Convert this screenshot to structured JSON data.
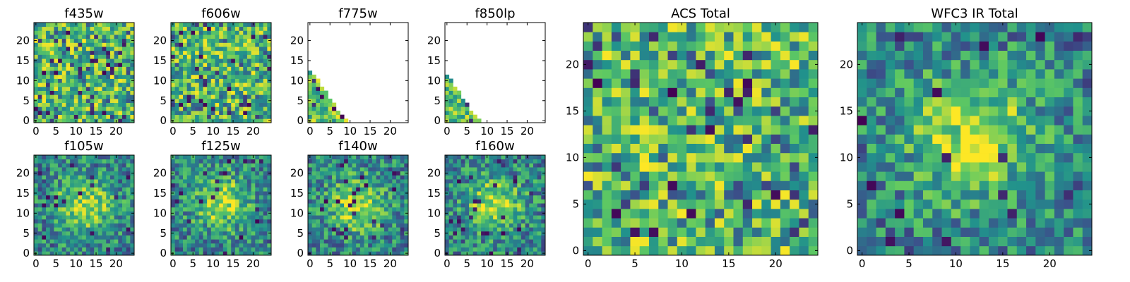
{
  "colormap": {
    "name": "viridis",
    "stops": [
      "#440154",
      "#3b528b",
      "#21918c",
      "#5ec962",
      "#fde725"
    ]
  },
  "chart_data": [
    {
      "type": "heatmap",
      "title": "f435w",
      "grid_size": 25,
      "xlim": [
        0,
        24
      ],
      "ylim": [
        0,
        24
      ],
      "xticks": [
        0,
        5,
        10,
        15,
        20
      ],
      "yticks": [
        0,
        5,
        10,
        15,
        20
      ],
      "pattern": "noise"
    },
    {
      "type": "heatmap",
      "title": "f606w",
      "grid_size": 25,
      "xlim": [
        0,
        24
      ],
      "ylim": [
        0,
        24
      ],
      "xticks": [
        0,
        5,
        10,
        15,
        20
      ],
      "yticks": [
        0,
        5,
        10,
        15,
        20
      ],
      "pattern": "noise"
    },
    {
      "type": "heatmap",
      "title": "f775w",
      "grid_size": 25,
      "xlim": [
        0,
        24
      ],
      "ylim": [
        0,
        24
      ],
      "xticks": [
        0,
        5,
        10,
        15,
        20
      ],
      "yticks": [
        0,
        5,
        10,
        15,
        20
      ],
      "pattern": "triangle",
      "filled_region": "x + 0.7*y <= 9"
    },
    {
      "type": "heatmap",
      "title": "f850lp",
      "grid_size": 25,
      "xlim": [
        0,
        24
      ],
      "ylim": [
        0,
        24
      ],
      "xticks": [
        0,
        5,
        10,
        15,
        20
      ],
      "yticks": [
        0,
        5,
        10,
        15,
        20
      ],
      "pattern": "triangle",
      "filled_region": "x + 0.7*y <= 8"
    },
    {
      "type": "heatmap",
      "title": "f105w",
      "grid_size": 25,
      "xlim": [
        0,
        24
      ],
      "ylim": [
        0,
        24
      ],
      "xticks": [
        0,
        5,
        10,
        15,
        20
      ],
      "yticks": [
        0,
        5,
        10,
        15,
        20
      ],
      "pattern": "centered",
      "center": [
        12,
        12
      ]
    },
    {
      "type": "heatmap",
      "title": "f125w",
      "grid_size": 25,
      "xlim": [
        0,
        24
      ],
      "ylim": [
        0,
        24
      ],
      "xticks": [
        0,
        5,
        10,
        15,
        20
      ],
      "yticks": [
        0,
        5,
        10,
        15,
        20
      ],
      "pattern": "centered",
      "center": [
        12,
        13
      ]
    },
    {
      "type": "heatmap",
      "title": "f140w",
      "grid_size": 25,
      "xlim": [
        0,
        24
      ],
      "ylim": [
        0,
        24
      ],
      "xticks": [
        0,
        5,
        10,
        15,
        20
      ],
      "yticks": [
        0,
        5,
        10,
        15,
        20
      ],
      "pattern": "centered",
      "center": [
        12,
        12
      ]
    },
    {
      "type": "heatmap",
      "title": "f160w",
      "grid_size": 25,
      "xlim": [
        0,
        24
      ],
      "ylim": [
        0,
        24
      ],
      "xticks": [
        0,
        5,
        10,
        15,
        20
      ],
      "yticks": [
        0,
        5,
        10,
        15,
        20
      ],
      "pattern": "centered",
      "center": [
        12,
        12
      ]
    },
    {
      "type": "heatmap",
      "title": "ACS Total",
      "grid_size": 25,
      "xlim": [
        0,
        24
      ],
      "ylim": [
        0,
        24
      ],
      "xticks": [
        0,
        5,
        10,
        15,
        20
      ],
      "yticks": [
        0,
        5,
        10,
        15,
        20
      ],
      "pattern": "noise"
    },
    {
      "type": "heatmap",
      "title": "WFC3 IR Total",
      "grid_size": 25,
      "xlim": [
        0,
        24
      ],
      "ylim": [
        0,
        24
      ],
      "xticks": [
        0,
        5,
        10,
        15,
        20
      ],
      "yticks": [
        0,
        5,
        10,
        15,
        20
      ],
      "pattern": "centered",
      "center": [
        12,
        12
      ]
    }
  ]
}
